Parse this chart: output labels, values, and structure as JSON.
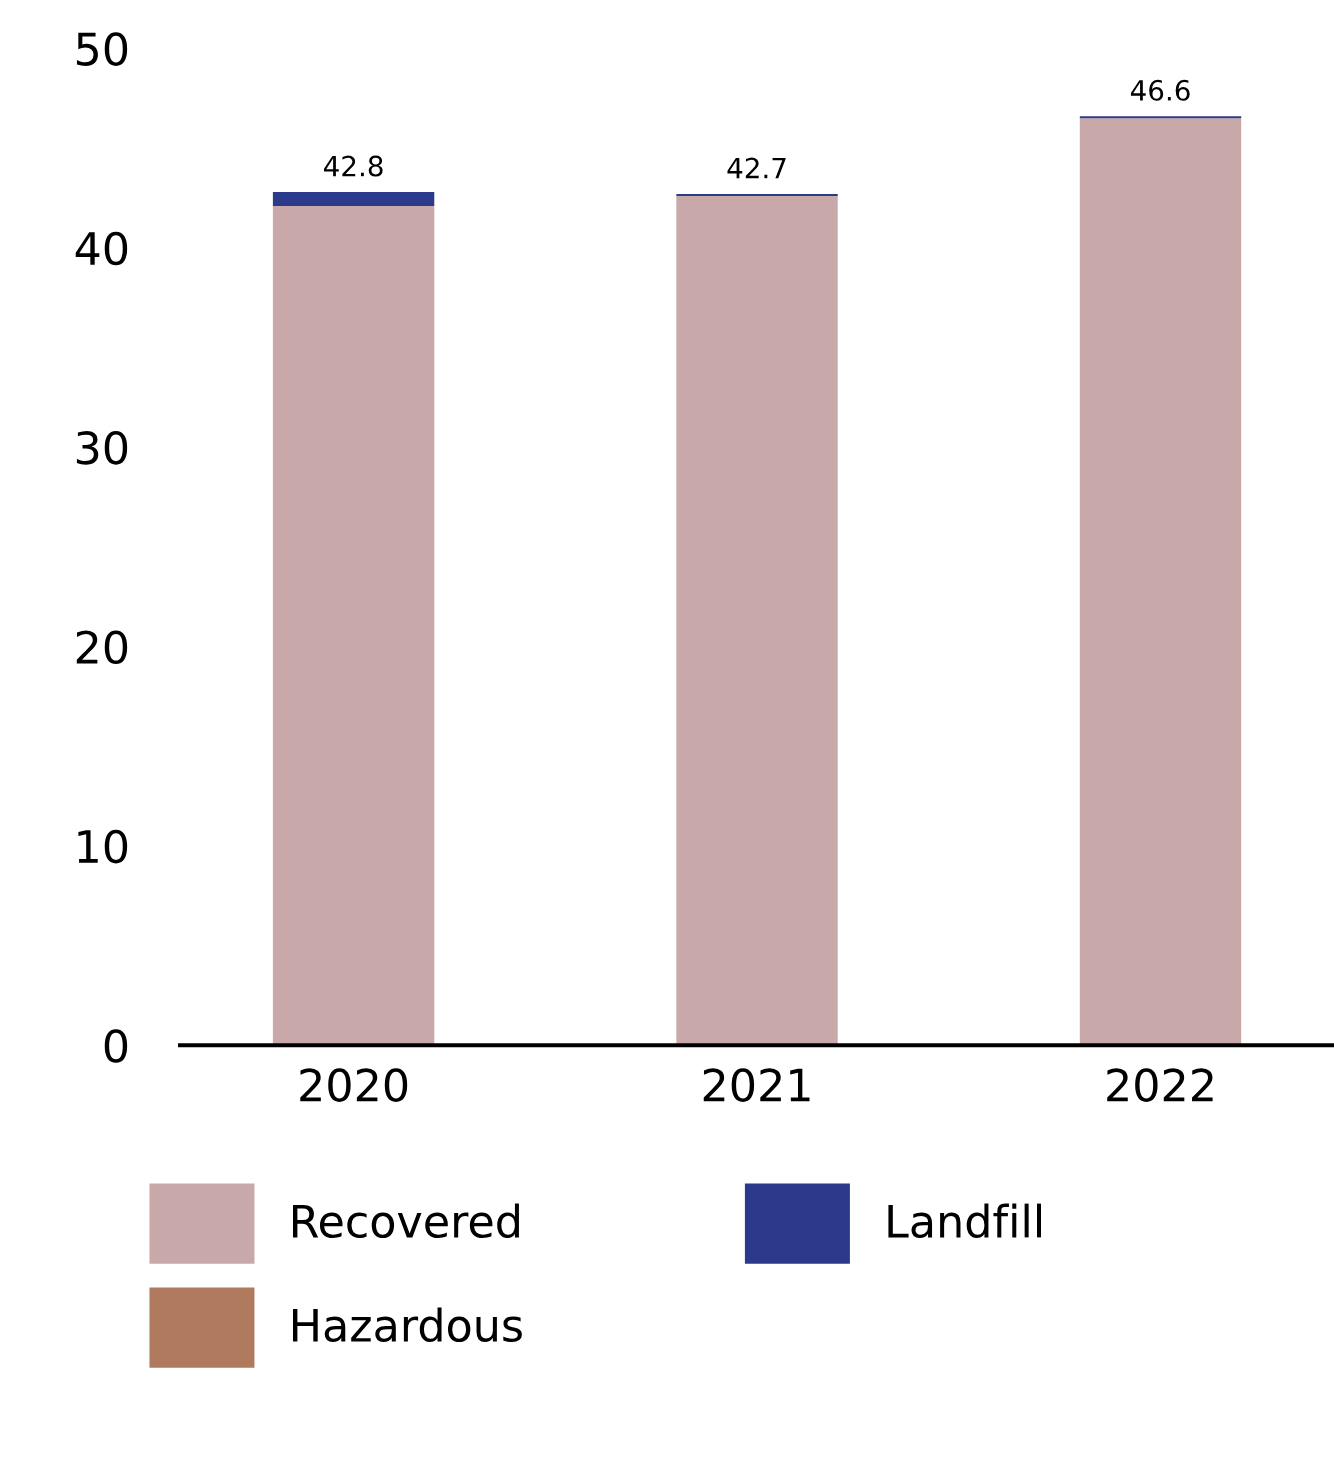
{
  "chart_data": {
    "type": "bar",
    "stacked": true,
    "categories": [
      "2020",
      "2021",
      "2022"
    ],
    "series": [
      {
        "name": "Recovered",
        "color": "#c9a8aa",
        "values": [
          42.1,
          42.6,
          46.5
        ]
      },
      {
        "name": "Hazardous",
        "color": "#b07a5e",
        "values": [
          0,
          0,
          0
        ]
      },
      {
        "name": "Landfill",
        "color": "#2b3a8a",
        "values": [
          0.7,
          0.1,
          0.1
        ]
      }
    ],
    "totals": [
      "42.8",
      "42.7",
      "46.6"
    ],
    "ylim": [
      0,
      50
    ],
    "yticks": [
      0,
      10,
      20,
      30,
      40,
      50
    ],
    "grid": false,
    "legend": "bottom"
  }
}
